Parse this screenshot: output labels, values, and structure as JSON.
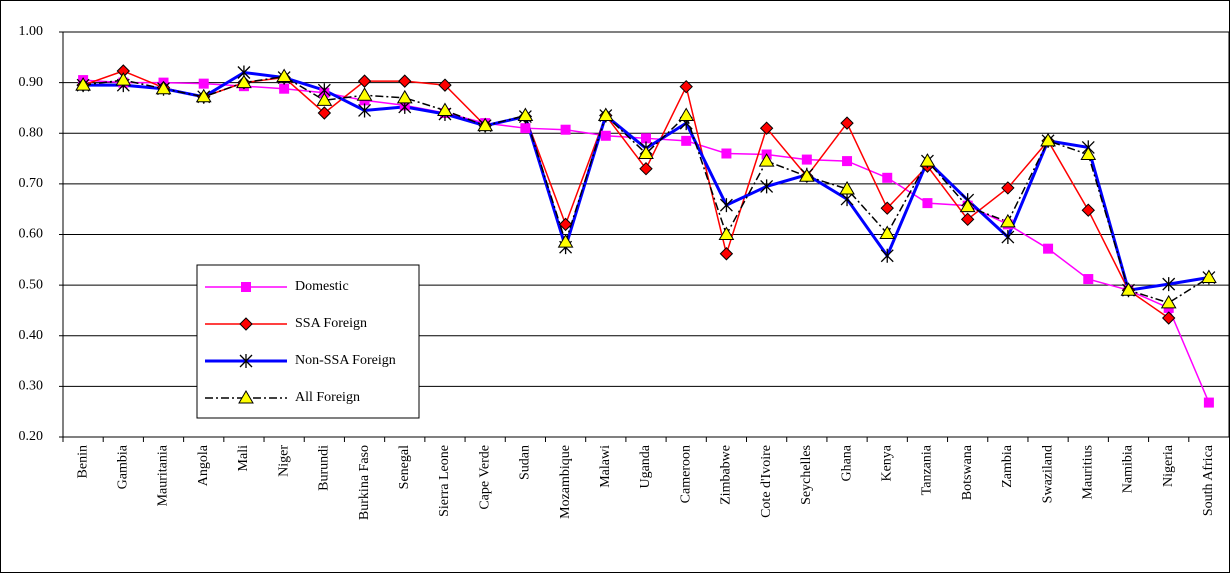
{
  "chart_data": {
    "type": "line",
    "categories": [
      "Benin",
      "Gambia",
      "Mauritania",
      "Angola",
      "Mali",
      "Niger",
      "Burundi",
      "Burkina Faso",
      "Senegal",
      "Sierra Leone",
      "Cape Verde",
      "Sudan",
      "Mozambique",
      "Malawi",
      "Uganda",
      "Cameroon",
      "Zimbabwe",
      "Cote d'Ivoire",
      "Seychelles",
      "Ghana",
      "Kenya",
      "Tanzania",
      "Botswana",
      "Zambia",
      "Swaziland",
      "Mauritius",
      "Namibia",
      "Nigeria",
      "South Africa"
    ],
    "series": [
      {
        "name": "Domestic",
        "color": "#ff00ff",
        "marker": "square",
        "dash": "solid",
        "values": [
          0.905,
          0.9,
          0.9,
          0.898,
          0.893,
          0.888,
          0.88,
          0.865,
          0.855,
          0.84,
          0.82,
          0.81,
          0.807,
          0.795,
          0.79,
          0.785,
          0.76,
          0.758,
          0.748,
          0.745,
          0.712,
          0.662,
          0.657,
          0.62,
          0.572,
          0.512,
          0.49,
          0.455,
          0.268
        ]
      },
      {
        "name": "SSA Foreign",
        "color": "#ff0000",
        "marker": "diamond",
        "dash": "solid",
        "values": [
          0.895,
          0.923,
          0.89,
          0.872,
          0.9,
          0.91,
          0.84,
          0.903,
          0.903,
          0.895,
          0.815,
          0.833,
          0.62,
          0.835,
          0.73,
          0.892,
          0.562,
          0.81,
          0.715,
          0.82,
          0.652,
          0.735,
          0.63,
          0.692,
          0.785,
          0.648,
          0.49,
          0.435,
          null
        ]
      },
      {
        "name": "Non-SSA Foreign",
        "color": "#0000ff",
        "marker": "star",
        "dash": "solid",
        "values": [
          0.895,
          0.895,
          0.888,
          0.872,
          0.92,
          0.91,
          0.885,
          0.845,
          0.852,
          0.838,
          0.815,
          0.833,
          0.575,
          0.835,
          0.77,
          0.82,
          0.658,
          0.695,
          0.718,
          0.67,
          0.558,
          0.745,
          0.668,
          0.595,
          0.785,
          0.772,
          0.49,
          0.502,
          0.515
        ]
      },
      {
        "name": "All Foreign",
        "color": "#000000",
        "marker": "triangle",
        "dash": "dashdot",
        "values": [
          0.895,
          0.905,
          0.888,
          0.872,
          0.9,
          0.912,
          0.865,
          0.875,
          0.87,
          0.845,
          0.815,
          0.835,
          0.585,
          0.835,
          0.76,
          0.835,
          0.6,
          0.745,
          0.715,
          0.69,
          0.602,
          0.745,
          0.655,
          0.625,
          0.785,
          0.758,
          0.49,
          0.465,
          0.515
        ]
      }
    ],
    "ylim": [
      0.2,
      1.0
    ],
    "yticks": [
      {
        "value": 0.2,
        "label": "0.20"
      },
      {
        "value": 0.3,
        "label": "0.30"
      },
      {
        "value": 0.4,
        "label": "0.40"
      },
      {
        "value": 0.5,
        "label": "0.50"
      },
      {
        "value": 0.6,
        "label": "0.60"
      },
      {
        "value": 0.7,
        "label": "0.70"
      },
      {
        "value": 0.8,
        "label": "0.80"
      },
      {
        "value": 0.9,
        "label": "0.90"
      },
      {
        "value": 1.0,
        "label": "1.00"
      }
    ],
    "grid": true
  }
}
